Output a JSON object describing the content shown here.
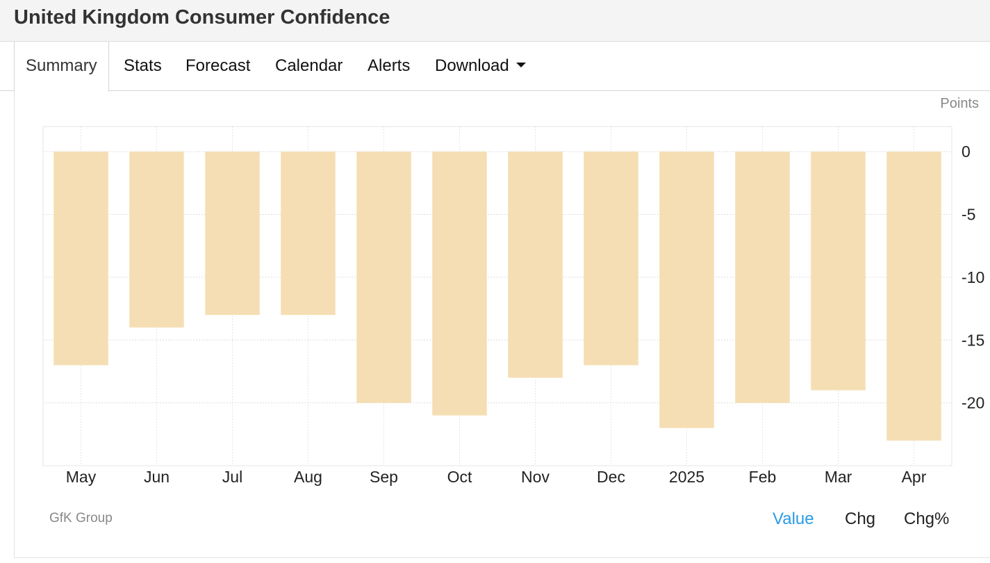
{
  "header": {
    "title": "United Kingdom Consumer Confidence"
  },
  "tabs": [
    {
      "label": "Summary",
      "active": true
    },
    {
      "label": "Stats"
    },
    {
      "label": "Forecast"
    },
    {
      "label": "Calendar"
    },
    {
      "label": "Alerts"
    },
    {
      "label": "Download",
      "has_dropdown": true
    }
  ],
  "chart_data": {
    "type": "bar",
    "unit_label": "Points",
    "categories": [
      "May",
      "Jun",
      "Jul",
      "Aug",
      "Sep",
      "Oct",
      "Nov",
      "Dec",
      "2025",
      "Feb",
      "Mar",
      "Apr"
    ],
    "values": [
      -17,
      -14,
      -13,
      -13,
      -20,
      -21,
      -18,
      -17,
      -22,
      -20,
      -19,
      -23
    ],
    "ylim": [
      -25,
      2
    ],
    "yticks": [
      0,
      -5,
      -10,
      -15,
      -20
    ],
    "grid": true,
    "bar_color": "#f5deb3",
    "source": "GfK Group"
  },
  "footer": {
    "toggles": [
      {
        "label": "Value",
        "active": true
      },
      {
        "label": "Chg"
      },
      {
        "label": "Chg%"
      }
    ]
  },
  "colors": {
    "accent": "#2a9be6",
    "bar": "#f5deb3"
  }
}
